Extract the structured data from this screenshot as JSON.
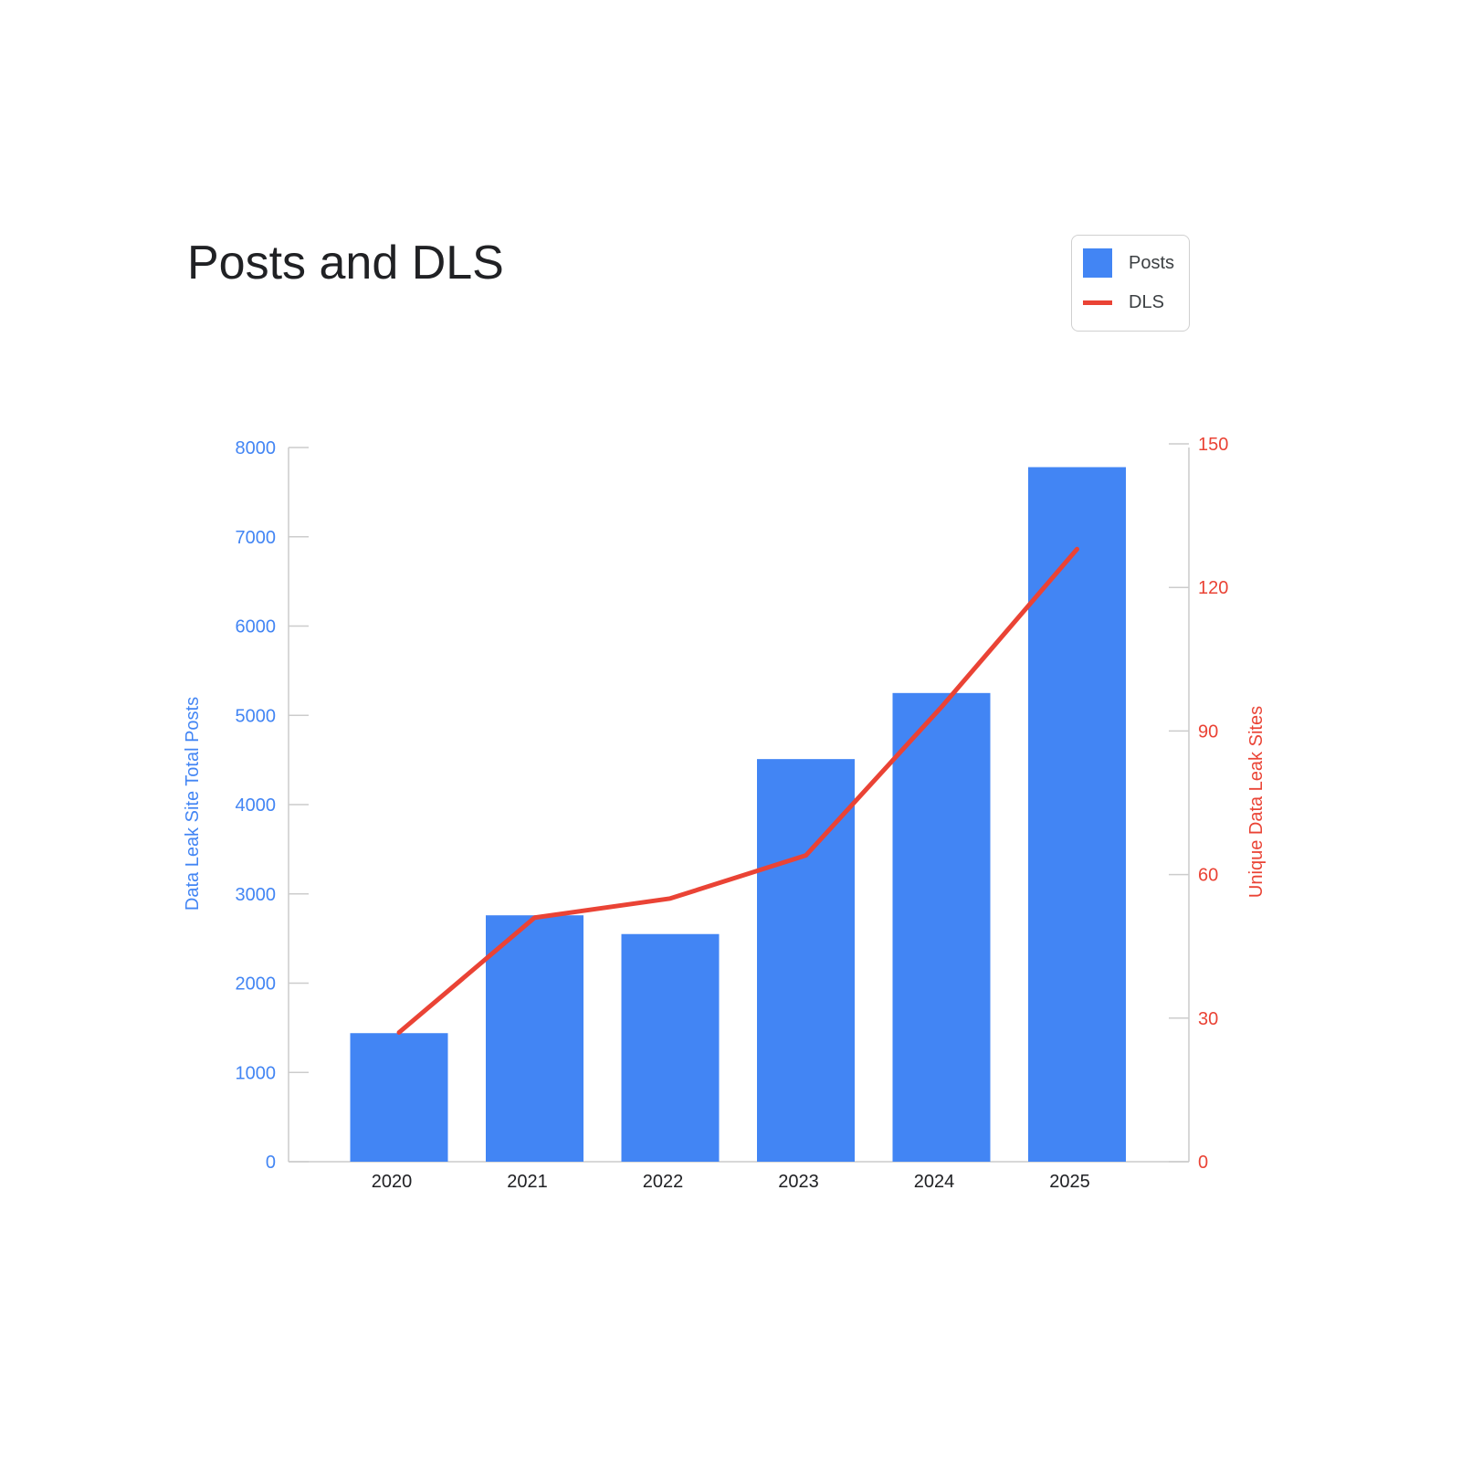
{
  "chart_data": {
    "type": "bar+line",
    "title": "Posts and DLS",
    "categories": [
      "2020",
      "2021",
      "2022",
      "2023",
      "2024",
      "2025"
    ],
    "series": [
      {
        "name": "Posts",
        "type": "bar",
        "axis": "left",
        "color": "#4285f4",
        "values": [
          1440,
          2760,
          2550,
          4510,
          5250,
          7780
        ]
      },
      {
        "name": "DLS",
        "type": "line",
        "axis": "right",
        "color": "#ea4335",
        "values": [
          27,
          51,
          55,
          64,
          95,
          128
        ]
      }
    ],
    "ylabel_left": "Data Leak Site Total Posts",
    "ylabel_right": "Unique Data Leak Sites",
    "ylim_left": [
      0,
      8000
    ],
    "ylim_right": [
      0,
      150
    ],
    "yticks_left": [
      "0",
      "1000",
      "2000",
      "3000",
      "4000",
      "5000",
      "6000",
      "7000",
      "8000"
    ],
    "yticks_right": [
      "0",
      "30",
      "60",
      "90",
      "120",
      "150"
    ],
    "legend": {
      "position": "top-right",
      "items": [
        "Posts",
        "DLS"
      ]
    },
    "grid": false
  }
}
